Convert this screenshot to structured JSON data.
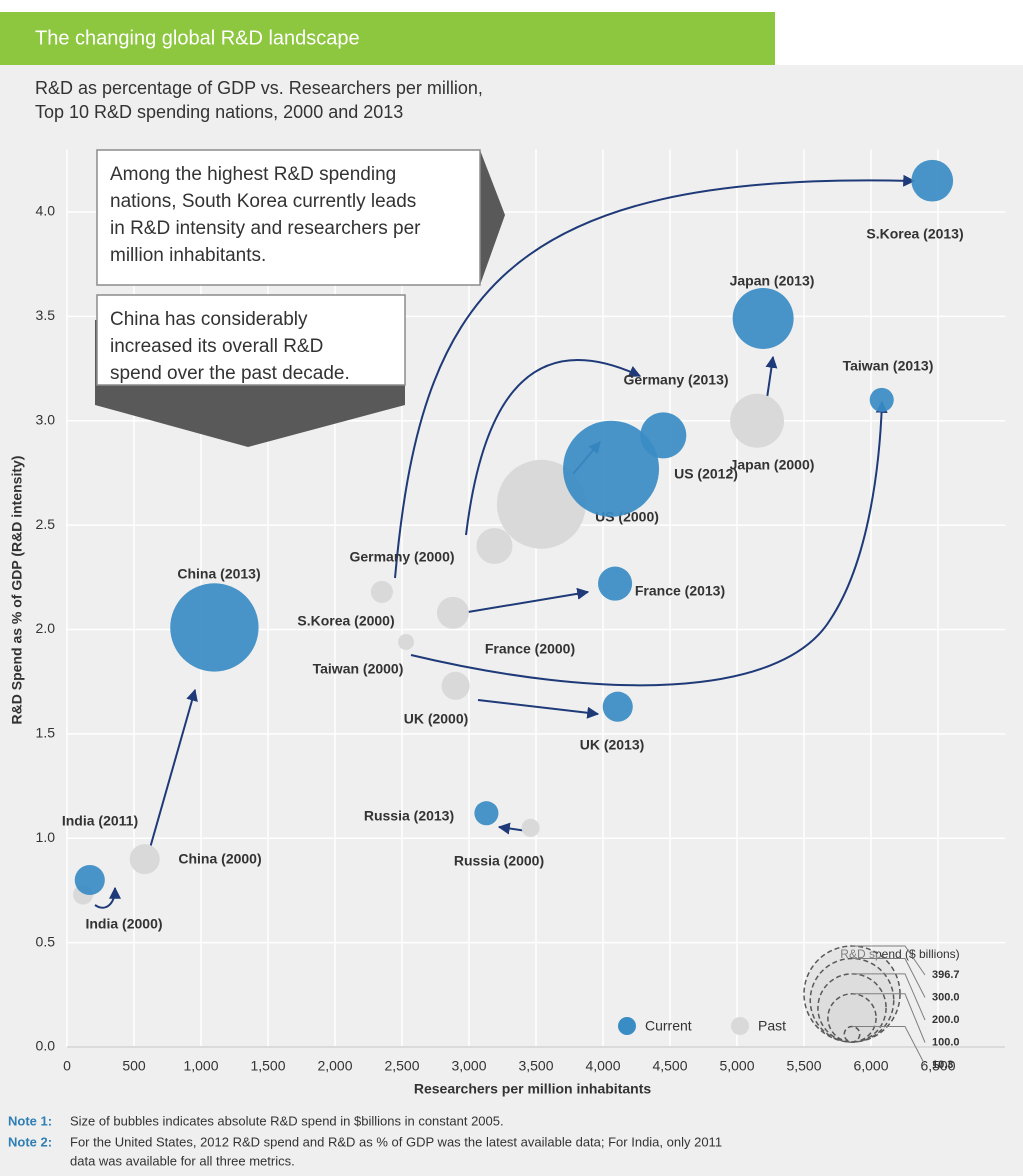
{
  "chart_data": {
    "type": "scatter",
    "title": "The changing global R&D landscape",
    "subtitle": [
      "R&D as percentage of GDP vs. Researchers per million,",
      "Top 10 R&D spending nations, 2000 and 2013"
    ],
    "x_label": "Researchers per million inhabitants",
    "y_label": "R&D Spend as % of GDP (R&D intensity)",
    "xlim": [
      0,
      7000
    ],
    "ylim": [
      0,
      4.3
    ],
    "xticks": [
      0,
      500,
      {
        "value": 1000,
        "label": "1,000"
      },
      {
        "value": 1500,
        "label": "1,500"
      },
      {
        "value": 2000,
        "label": "2,000"
      },
      {
        "value": 2500,
        "label": "2,500"
      },
      {
        "value": 3000,
        "label": "3,000"
      },
      {
        "value": 3500,
        "label": "3,500"
      },
      {
        "value": 4000,
        "label": "4,000"
      },
      {
        "value": 4500,
        "label": "4,500"
      },
      {
        "value": 5000,
        "label": "5,000"
      },
      {
        "value": 5500,
        "label": "5,500"
      },
      {
        "value": 6000,
        "label": "6,000"
      },
      {
        "value": 6500,
        "label": "6,500"
      }
    ],
    "yticks": [
      {
        "value": 0,
        "label": "0.0"
      },
      0.5,
      {
        "value": 1,
        "label": "1.0"
      },
      1.5,
      {
        "value": 2,
        "label": "2.0"
      },
      2.5,
      {
        "value": 3,
        "label": "3.0"
      },
      3.5,
      {
        "value": 4,
        "label": "4.0"
      }
    ],
    "grid": true,
    "series": [
      {
        "name": "Current",
        "color": "#3a8cc4",
        "labels": [
          "S.Korea (2013)",
          "Japan (2013)",
          "Taiwan (2013)",
          "US (2012)",
          "Germany (2013)",
          "France (2013)",
          "China (2013)",
          "UK (2013)",
          "Russia (2013)",
          "India (2011)"
        ],
        "x": [
          6457,
          5195,
          6080,
          4060,
          4450,
          4090,
          1100,
          4110,
          3130,
          170
        ],
        "values": [
          4.15,
          3.49,
          3.1,
          2.77,
          2.93,
          2.22,
          2.01,
          1.63,
          1.12,
          0.8
        ],
        "sizes": [
          75,
          160,
          25,
          396.7,
          91,
          50,
          336,
          39,
          25,
          39
        ]
      },
      {
        "name": "Past",
        "color": "#d9d9d9",
        "labels": [
          "Japan (2000)",
          "US (2000)",
          "Germany (2000)",
          "S.Korea (2000)",
          "France (2000)",
          "Taiwan (2000)",
          "UK (2000)",
          "Russia (2000)",
          "China (2000)",
          "India (2000)"
        ],
        "x": [
          5150,
          3540,
          3190,
          2350,
          2880,
          2530,
          2900,
          3460,
          580,
          120
        ],
        "values": [
          3.0,
          2.6,
          2.4,
          2.18,
          2.08,
          1.94,
          1.73,
          1.05,
          0.9,
          0.73
        ],
        "sizes": [
          125,
          340,
          56,
          21,
          44,
          11,
          34,
          14,
          39,
          17
        ]
      }
    ],
    "annotations": [
      [
        "Among the highest R&D spending",
        "nations, South Korea currently leads",
        "in R&D intensity and researchers per",
        "million inhabitants."
      ],
      [
        "China has considerably",
        "increased its overall R&D",
        "spend over the past decade."
      ]
    ],
    "size_legend": {
      "title": "R&D spend ($ billions)",
      "values": [
        396.7,
        {
          "value": 300,
          "label": "300.0"
        },
        {
          "value": 200,
          "label": "200.0"
        },
        {
          "value": 100,
          "label": "100.0"
        },
        10.3
      ]
    },
    "notes": [
      {
        "label": "Note 1:",
        "text": [
          "Size of bubbles indicates absolute R&D spend in $billions in constant 2005."
        ]
      },
      {
        "label": "Note 2:",
        "text": [
          "For the United States, 2012 R&D spend and R&D as % of GDP was the latest available data; For India, only 2011",
          "data was available for all three metrics."
        ]
      }
    ]
  }
}
